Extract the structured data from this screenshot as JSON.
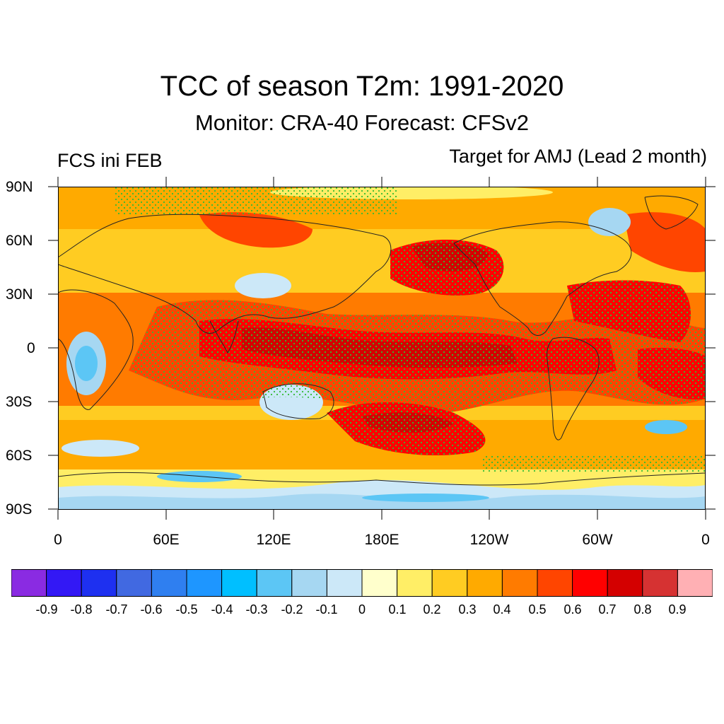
{
  "title": "TCC of season T2m: 1991-2020",
  "subtitle": "Monitor: CRA-40   Forecast: CFSv2",
  "left_label": "FCS ini FEB",
  "right_label": "Target for AMJ (Lead 2 month)",
  "y_axis_labels": [
    "90N",
    "60N",
    "30N",
    "0",
    "30S",
    "60S",
    "90S"
  ],
  "x_axis_labels": [
    "0",
    "60E",
    "120E",
    "180E",
    "120W",
    "60W",
    "0"
  ],
  "colorbar": {
    "colors": [
      "#8a2be2",
      "#3318f5",
      "#1e30f0",
      "#4169e1",
      "#2f7ff0",
      "#1e96ff",
      "#00bfff",
      "#5cc6f5",
      "#a6d7f2",
      "#cce8f8",
      "#ffffcc",
      "#ffee66",
      "#ffcc22",
      "#ffaa00",
      "#ff7b00",
      "#ff4500",
      "#ff0000",
      "#d40000",
      "#d63232",
      "#ffb0b4"
    ],
    "labels": [
      "-0.9",
      "-0.8",
      "-0.7",
      "-0.6",
      "-0.5",
      "-0.4",
      "-0.3",
      "-0.2",
      "-0.1",
      "0",
      "0.1",
      "0.2",
      "0.3",
      "0.4",
      "0.5",
      "0.6",
      "0.7",
      "0.8",
      "0.9"
    ]
  },
  "map": {
    "projection": "cylindrical equidistant",
    "lon_range": [
      0,
      360
    ],
    "lat_range": [
      -90,
      90
    ],
    "variable": "temporal correlation coefficient of T2m",
    "significance_dots_color": "#33bb33",
    "continent_outline_color": "#222222"
  }
}
